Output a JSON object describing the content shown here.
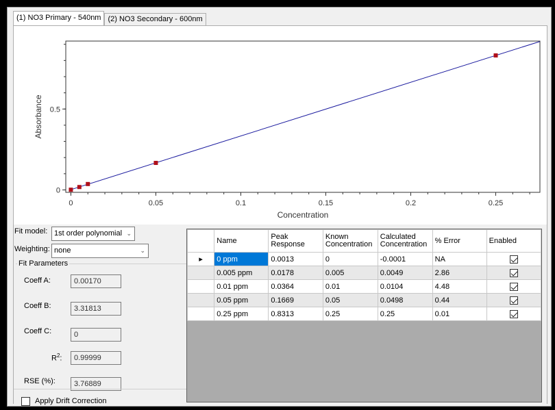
{
  "tabs": [
    {
      "label": "(1) NO3 Primary - 540nm",
      "active": true
    },
    {
      "label": "(2) NO3 Secondary - 600nm",
      "active": false
    }
  ],
  "chart_data": {
    "type": "line",
    "xlabel": "Concentration",
    "ylabel": "Absorbance",
    "xlim": [
      -0.003,
      0.276
    ],
    "ylim": [
      -0.015,
      0.92
    ],
    "xticks": [
      "0",
      "0.05",
      "0.1",
      "0.15",
      "0.2",
      "0.25"
    ],
    "xtick_values": [
      0,
      0.05,
      0.1,
      0.15,
      0.2,
      0.25
    ],
    "yticks": [
      "0",
      "0.5"
    ],
    "ytick_values": [
      0,
      0.5
    ],
    "fit_line": {
      "x": [
        0,
        0.276
      ],
      "y": [
        0.0017,
        0.9175
      ]
    },
    "points": [
      {
        "x": 0,
        "y": 0.0013
      },
      {
        "x": 0.005,
        "y": 0.0178
      },
      {
        "x": 0.01,
        "y": 0.0364
      },
      {
        "x": 0.05,
        "y": 0.1669
      },
      {
        "x": 0.25,
        "y": 0.8313
      }
    ],
    "grid": false,
    "line_color": "#1a1a9e",
    "point_color": "#b0101a"
  },
  "controls": {
    "fit_model_label": "Fit model:",
    "fit_model_value": "1st order polynomial",
    "weighting_label": "Weighting:",
    "weighting_value": "none",
    "fit_parameters_title": "Fit Parameters",
    "coeff_a_label": "Coeff A:",
    "coeff_a_value": "0.00170",
    "coeff_b_label": "Coeff B:",
    "coeff_b_value": "3.31813",
    "coeff_c_label": "Coeff C:",
    "coeff_c_value": "0",
    "r2_label": "R",
    "r2_sup": "2",
    "r2_colon": ":",
    "r2_value": "0.99999",
    "rse_label": "RSE (%):",
    "rse_value": "3.76889",
    "drift_label": "Apply Drift Correction"
  },
  "table": {
    "headers": [
      "Name",
      "Peak Response",
      "Known Concentration",
      "Calculated Concentration",
      "% Error",
      "Enabled"
    ],
    "header_lines": [
      [
        "Name"
      ],
      [
        "Peak",
        "Response"
      ],
      [
        "Known",
        "Concentration"
      ],
      [
        "Calculated",
        "Concentration"
      ],
      [
        "% Error"
      ],
      [
        "Enabled"
      ]
    ],
    "rows": [
      {
        "name": "0 ppm",
        "peak": "0.0013",
        "known": "0",
        "calc": "-0.0001",
        "error": "NA",
        "enabled": true
      },
      {
        "name": "0.005 ppm",
        "peak": "0.0178",
        "known": "0.005",
        "calc": "0.0049",
        "error": "2.86",
        "enabled": true
      },
      {
        "name": "0.01 ppm",
        "peak": "0.0364",
        "known": "0.01",
        "calc": "0.0104",
        "error": "4.48",
        "enabled": true
      },
      {
        "name": "0.05 ppm",
        "peak": "0.1669",
        "known": "0.05",
        "calc": "0.0498",
        "error": "0.44",
        "enabled": true
      },
      {
        "name": "0.25 ppm",
        "peak": "0.8313",
        "known": "0.25",
        "calc": "0.25",
        "error": "0.01",
        "enabled": true
      }
    ]
  }
}
